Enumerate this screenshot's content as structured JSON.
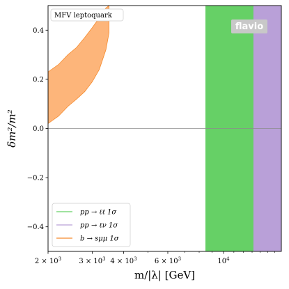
{
  "chart_data": {
    "type": "area",
    "annotation": "MFV leptoquark",
    "watermark": "flavio",
    "xlabel": "m/|λ| [GeV]",
    "ylabel": "δm²/m²",
    "xscale": "log",
    "xlim": [
      2000,
      17000
    ],
    "ylim": [
      -0.5,
      0.5
    ],
    "xticks": [
      {
        "value": 2000,
        "base": "2 × 10",
        "exp": "3"
      },
      {
        "value": 3000,
        "base": "3 × 10",
        "exp": "3"
      },
      {
        "value": 4000,
        "base": "4 × 10",
        "exp": "3"
      },
      {
        "value": 6000,
        "base": "6 × 10",
        "exp": "3"
      },
      {
        "value": 10000,
        "base": "10",
        "exp": "4"
      }
    ],
    "yticks": [
      {
        "value": -0.4,
        "label": "−0.4"
      },
      {
        "value": -0.2,
        "label": "−0.2"
      },
      {
        "value": 0.0,
        "label": "0.0"
      },
      {
        "value": 0.2,
        "label": "0.2"
      },
      {
        "value": 0.4,
        "label": "0.4"
      }
    ],
    "reference_line_y": 0.0,
    "grid": false,
    "legend_position": "lower-left",
    "series": [
      {
        "name": "pp → ℓℓ 1σ",
        "color": "#66d066",
        "kind": "vertical-band",
        "x_low": 8500,
        "x_high": 13200
      },
      {
        "name": "pp → ℓν 1σ",
        "color": "#b9a0d8",
        "kind": "vertical-band",
        "x_low": 13200,
        "x_high": 17000
      },
      {
        "name": "b → sμμ 1σ",
        "color": "#fdb57a",
        "edge_color": "#f58a2c",
        "kind": "band",
        "x": [
          2000,
          2200,
          2400,
          2600,
          2800,
          3000,
          3200,
          3400,
          3500
        ],
        "upper": [
          0.23,
          0.26,
          0.3,
          0.33,
          0.37,
          0.41,
          0.45,
          0.49,
          0.5
        ],
        "lower": [
          0.02,
          0.05,
          0.09,
          0.12,
          0.15,
          0.19,
          0.24,
          0.32,
          0.39
        ]
      }
    ]
  }
}
